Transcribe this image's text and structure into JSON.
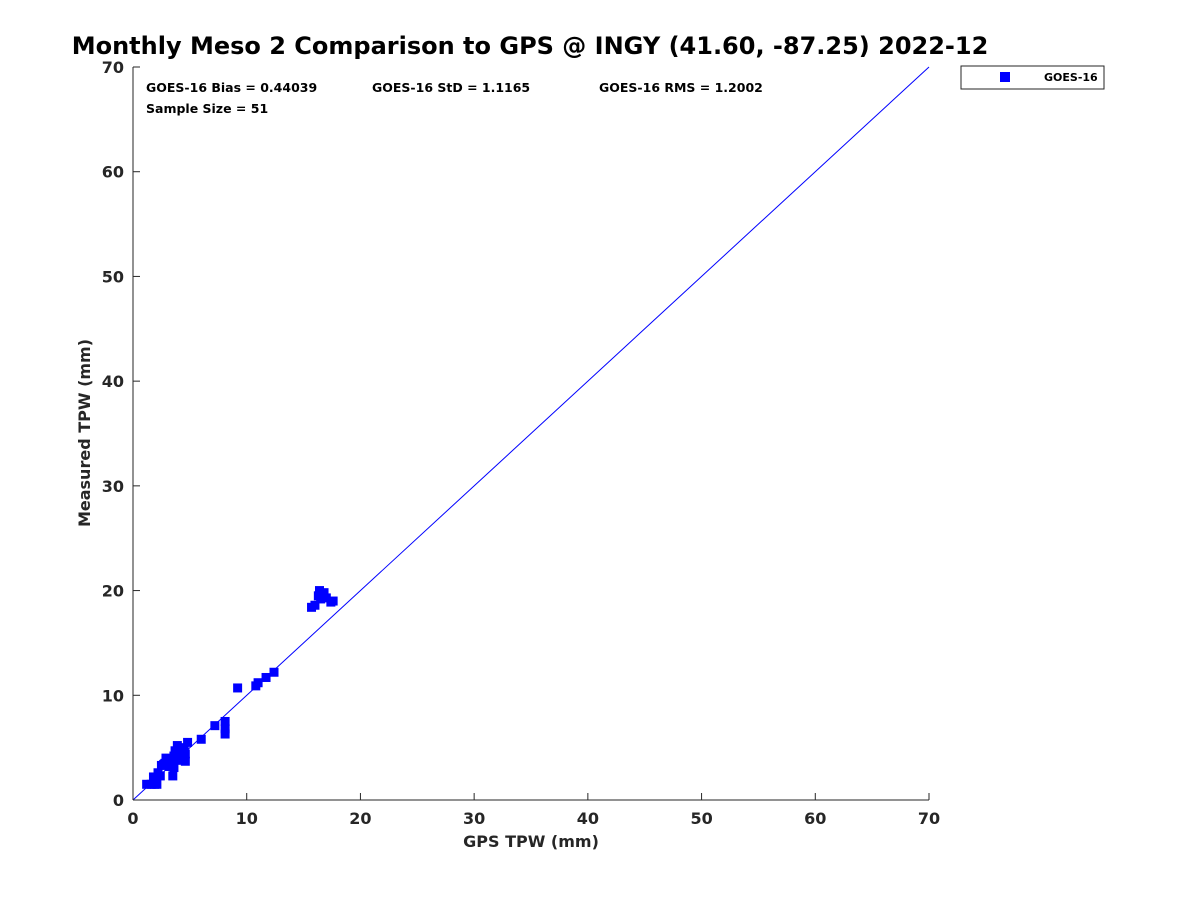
{
  "chart_data": {
    "type": "scatter",
    "title": "Monthly Meso 2 Comparison to GPS @ INGY (41.60, -87.25) 2022-12",
    "xlabel": "GPS TPW (mm)",
    "ylabel": "Measured TPW (mm)",
    "xlim": [
      0,
      70
    ],
    "ylim": [
      0,
      70
    ],
    "x_ticks": [
      "0",
      "10",
      "20",
      "30",
      "40",
      "50",
      "60",
      "70"
    ],
    "y_ticks": [
      "0",
      "10",
      "20",
      "30",
      "40",
      "50",
      "60",
      "70"
    ],
    "grid": false,
    "legend_position": "top-right-outside",
    "annotations": [
      "GOES-16 Bias = 0.44039",
      "GOES-16 StD = 1.1165",
      "GOES-16 RMS = 1.2002",
      "Sample Size = 51"
    ],
    "reference_line": {
      "from": [
        0,
        0
      ],
      "to": [
        70,
        70
      ],
      "color": "#0000ff"
    },
    "series": [
      {
        "name": "GOES-16",
        "color": "#0000ff",
        "marker": "square",
        "points": [
          [
            1.2,
            1.5
          ],
          [
            1.6,
            1.5
          ],
          [
            1.9,
            1.5
          ],
          [
            2.1,
            1.5
          ],
          [
            1.8,
            2.2
          ],
          [
            2.2,
            2.6
          ],
          [
            2.0,
            2.0
          ],
          [
            2.4,
            2.3
          ],
          [
            2.5,
            3.3
          ],
          [
            2.8,
            3.5
          ],
          [
            2.9,
            4.0
          ],
          [
            3.2,
            3.2
          ],
          [
            3.5,
            2.3
          ],
          [
            3.5,
            3.5
          ],
          [
            3.6,
            3.1
          ],
          [
            3.6,
            4.2
          ],
          [
            3.7,
            4.7
          ],
          [
            3.8,
            3.8
          ],
          [
            3.9,
            5.2
          ],
          [
            4.0,
            4.5
          ],
          [
            4.2,
            3.8
          ],
          [
            4.3,
            5.0
          ],
          [
            4.4,
            4.2
          ],
          [
            4.6,
            4.4
          ],
          [
            4.6,
            3.7
          ],
          [
            4.5,
            4.9
          ],
          [
            4.8,
            5.5
          ],
          [
            6.0,
            5.8
          ],
          [
            7.2,
            7.1
          ],
          [
            8.1,
            7.5
          ],
          [
            8.1,
            6.8
          ],
          [
            8.1,
            6.3
          ],
          [
            9.2,
            10.7
          ],
          [
            10.8,
            10.9
          ],
          [
            11.0,
            11.2
          ],
          [
            11.7,
            11.7
          ],
          [
            12.4,
            12.2
          ],
          [
            15.7,
            18.4
          ],
          [
            16.0,
            18.6
          ],
          [
            16.4,
            20.0
          ],
          [
            16.5,
            19.2
          ],
          [
            16.6,
            19.6
          ],
          [
            16.8,
            19.8
          ],
          [
            17.0,
            19.3
          ],
          [
            17.6,
            19.0
          ],
          [
            17.4,
            18.9
          ],
          [
            16.7,
            19.4
          ],
          [
            16.3,
            19.5
          ],
          [
            4.1,
            3.9
          ],
          [
            3.3,
            3.6
          ],
          [
            2.7,
            3.4
          ]
        ]
      }
    ]
  }
}
